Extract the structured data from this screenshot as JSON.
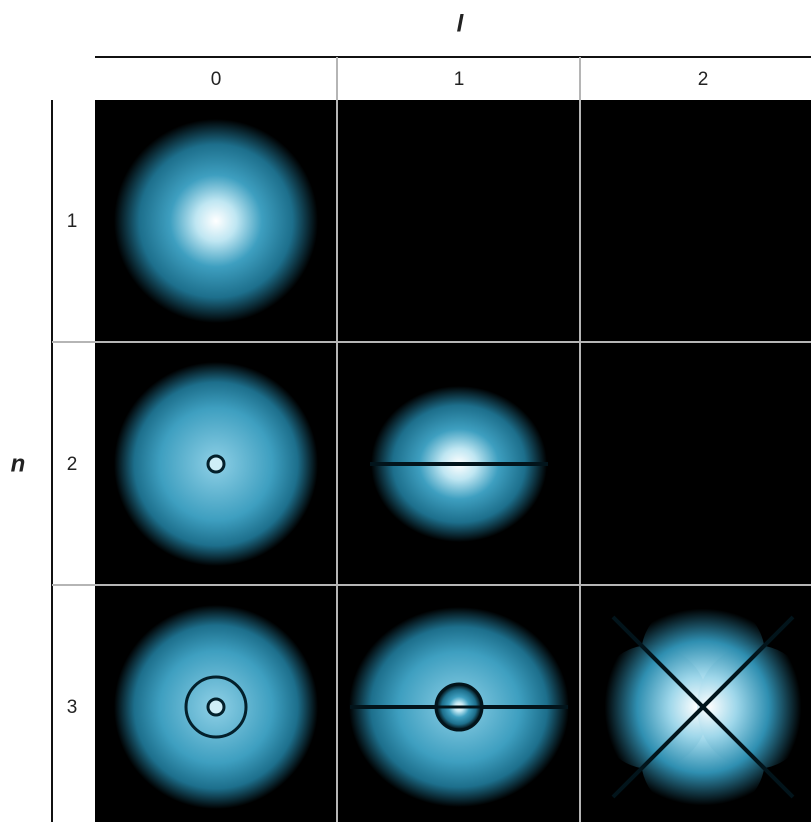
{
  "axis_top": "l",
  "axis_left": "n",
  "columns": [
    "0",
    "1",
    "2"
  ],
  "rows": [
    "1",
    "2",
    "3"
  ]
}
